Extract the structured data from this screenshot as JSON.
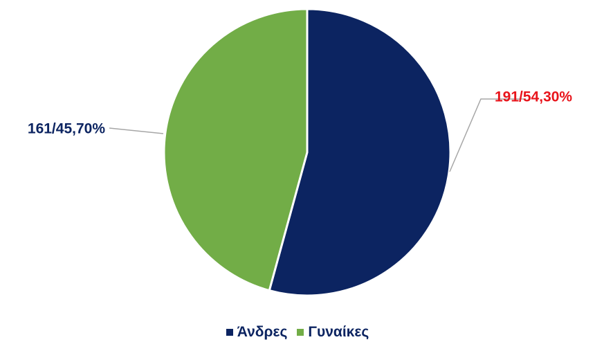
{
  "chart_data": {
    "type": "pie",
    "slices": [
      {
        "name": "Άνδρες",
        "value": 191,
        "percent": "54,30%",
        "label": "191/54,30%",
        "color": "#0c2461",
        "label_color": "#e8141b"
      },
      {
        "name": "Γυναίκες",
        "value": 161,
        "percent": "45,70%",
        "label": "161/45,70%",
        "color": "#72ad47",
        "label_color": "#0c2461"
      }
    ],
    "legend": {
      "position": "bottom",
      "text_color": "#0c2461"
    },
    "leader_line_color": "#a6a6a6",
    "start_angle_deg": 0,
    "direction": "clockwise"
  }
}
